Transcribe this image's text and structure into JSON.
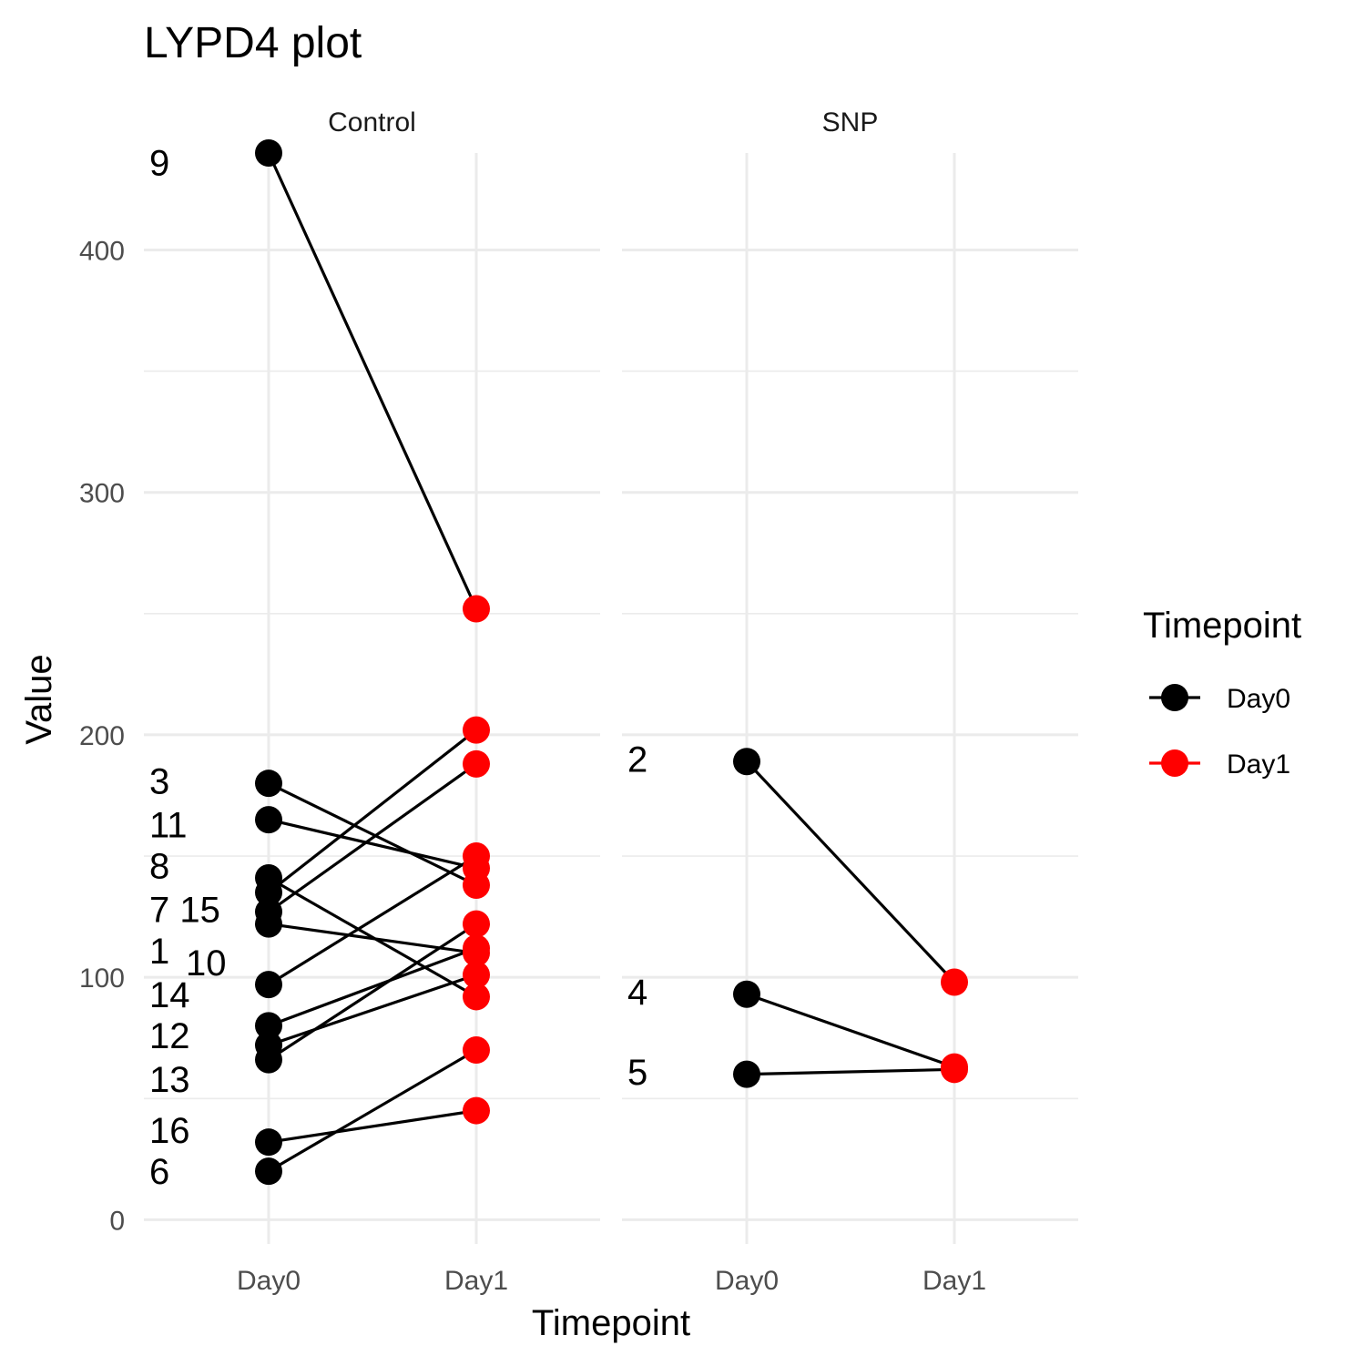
{
  "chart_data": {
    "type": "line",
    "title": "LYPD4 plot",
    "xlabel": "Timepoint",
    "ylabel": "Value",
    "ylim": [
      -10,
      440
    ],
    "y_ticks": [
      0,
      100,
      200,
      300,
      400
    ],
    "categories": [
      "Day0",
      "Day1"
    ],
    "grid": true,
    "legend": {
      "title": "Timepoint",
      "position": "right",
      "entries": [
        {
          "label": "Day0",
          "color": "#000000"
        },
        {
          "label": "Day1",
          "color": "#ff0000"
        }
      ]
    },
    "facets": [
      {
        "name": "Control",
        "subjects": [
          {
            "id": "9",
            "day0": 440,
            "day1": 252
          },
          {
            "id": "3",
            "day0": 180,
            "day1": 138
          },
          {
            "id": "11",
            "day0": 165,
            "day1": 145
          },
          {
            "id": "8",
            "day0": 141,
            "day1": 92
          },
          {
            "id": "7",
            "day0": 127,
            "day1": 188
          },
          {
            "id": "15",
            "day0": 135,
            "day1": 202
          },
          {
            "id": "1",
            "day0": 122,
            "day1": 110
          },
          {
            "id": "10",
            "day0": 97,
            "day1": 150
          },
          {
            "id": "14",
            "day0": 80,
            "day1": 112
          },
          {
            "id": "12",
            "day0": 72,
            "day1": 101
          },
          {
            "id": "13",
            "day0": 66,
            "day1": 122
          },
          {
            "id": "16",
            "day0": 32,
            "day1": 45
          },
          {
            "id": "6",
            "day0": 20,
            "day1": 70
          }
        ],
        "label_positions": [
          {
            "id": "9",
            "y": 436
          },
          {
            "id": "3",
            "y": 181
          },
          {
            "id": "11",
            "y": 163
          },
          {
            "id": "8",
            "y": 146
          },
          {
            "id": "7 15",
            "y": 128
          },
          {
            "id": "1",
            "y": 111
          },
          {
            "id": "10",
            "y": 106
          },
          {
            "id": "14",
            "y": 93
          },
          {
            "id": "12",
            "y": 76
          },
          {
            "id": "13",
            "y": 58
          },
          {
            "id": "16",
            "y": 37
          },
          {
            "id": "6",
            "y": 20
          }
        ]
      },
      {
        "name": "SNP",
        "subjects": [
          {
            "id": "2",
            "day0": 189,
            "day1": 98
          },
          {
            "id": "4",
            "day0": 93,
            "day1": 63
          },
          {
            "id": "5",
            "day0": 60,
            "day1": 62
          }
        ],
        "label_positions": [
          {
            "id": "2",
            "y": 190
          },
          {
            "id": "4",
            "y": 94
          },
          {
            "id": "5",
            "y": 61
          }
        ]
      }
    ]
  }
}
